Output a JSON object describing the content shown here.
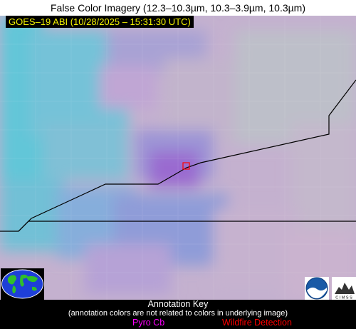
{
  "title": "False Color Imagery (12.3–10.3µm, 10.3–3.9µm, 10.3µm)",
  "timestamp": "GOES–19 ABI (10/28/2025 – 15:31:30 UTC)",
  "annotation_key": {
    "title": "Annotation Key",
    "note": "(annotation colors are not related to colors in underlying image)",
    "pyro_cb": "Pyro Cb",
    "wildfire": "Wildfire Detection"
  },
  "colors": {
    "pyro_cb": "#ff00ff",
    "wildfire": "#ff0000",
    "timestamp_text": "#f2f200",
    "boundary": "#000000"
  },
  "logos": {
    "noaa": "NOAA",
    "cimss": "CIMSS"
  }
}
